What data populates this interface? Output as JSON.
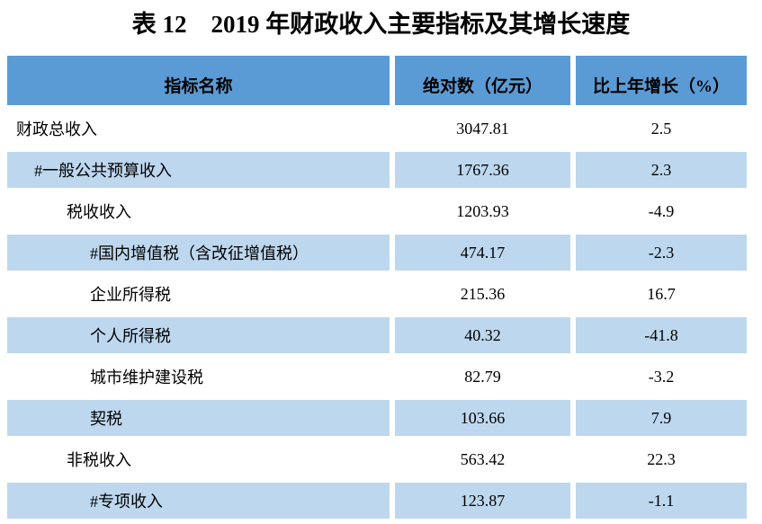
{
  "title": "表 12　2019 年财政收入主要指标及其增长速度",
  "table": {
    "columns": [
      {
        "label": "指标名称"
      },
      {
        "label": "绝对数（亿元）"
      },
      {
        "label": "比上年增长（%）"
      }
    ],
    "rows": [
      {
        "name": "财政总收入",
        "value": "3047.81",
        "growth": "2.5",
        "indent": 0,
        "shaded": false
      },
      {
        "name": "#一般公共预算收入",
        "value": "1767.36",
        "growth": "2.3",
        "indent": 1,
        "shaded": true
      },
      {
        "name": "税收收入",
        "value": "1203.93",
        "growth": "-4.9",
        "indent": 2,
        "shaded": false
      },
      {
        "name": "#国内增值税（含改征增值税）",
        "value": "474.17",
        "growth": "-2.3",
        "indent": 3,
        "shaded": true
      },
      {
        "name": "企业所得税",
        "value": "215.36",
        "growth": "16.7",
        "indent": 3,
        "shaded": false
      },
      {
        "name": "个人所得税",
        "value": "40.32",
        "growth": "-41.8",
        "indent": 3,
        "shaded": true
      },
      {
        "name": "城市维护建设税",
        "value": "82.79",
        "growth": "-3.2",
        "indent": 3,
        "shaded": false
      },
      {
        "name": "契税",
        "value": "103.66",
        "growth": "7.9",
        "indent": 3,
        "shaded": true
      },
      {
        "name": "非税收入",
        "value": "563.42",
        "growth": "22.3",
        "indent": 2,
        "shaded": false
      },
      {
        "name": "#专项收入",
        "value": "123.87",
        "growth": "-1.1",
        "indent": 3,
        "shaded": true
      }
    ]
  },
  "colors": {
    "header_bg": "#5B9BD5",
    "band_bg": "#BDD7EE",
    "text": "#000000",
    "page_bg": "#FFFFFF"
  }
}
